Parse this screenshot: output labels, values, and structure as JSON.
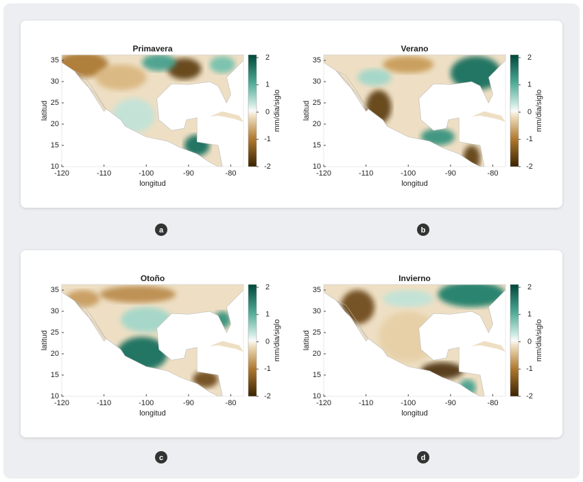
{
  "panels": [
    {
      "title": "Primavera",
      "badge": "a"
    },
    {
      "title": "Verano",
      "badge": "b"
    },
    {
      "title": "Otoño",
      "badge": "c"
    },
    {
      "title": "Invierno",
      "badge": "d"
    }
  ],
  "axes": {
    "xlabel": "longitud",
    "ylabel": "latitud",
    "xlim": [
      -120,
      -77
    ],
    "ylim": [
      10,
      36.3
    ],
    "xticks": [
      -120,
      -110,
      -100,
      -90,
      -80
    ],
    "yticks": [
      10,
      15,
      20,
      25,
      30,
      35
    ],
    "colorbar": {
      "label": "mm/dia/siglo",
      "lim": [
        -2,
        2
      ],
      "ticks": [
        -2,
        -1,
        0,
        1,
        2
      ]
    }
  }
}
